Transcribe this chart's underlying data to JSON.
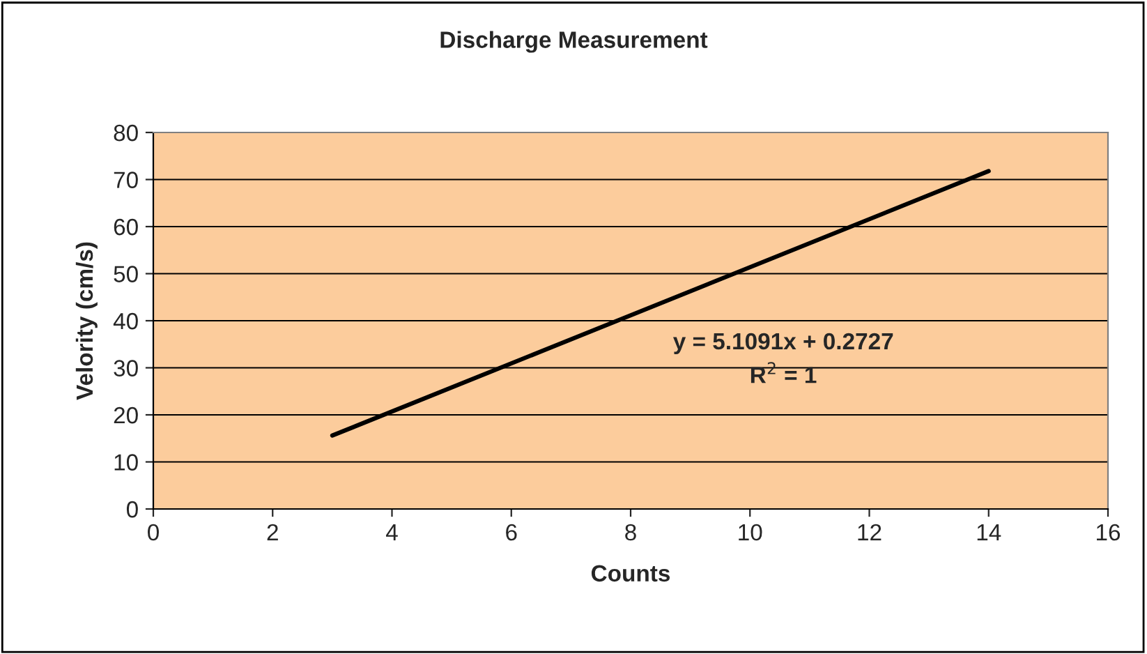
{
  "chart_data": {
    "type": "line",
    "title": "Discharge Measurement",
    "xlabel": "Counts",
    "ylabel": "Velority (cm/s)",
    "series": [
      {
        "color": "#000000",
        "x": [
          3,
          14
        ],
        "values": [
          15.6,
          71.8
        ]
      }
    ],
    "xlim": [
      0,
      16
    ],
    "xticks": [
      0,
      2,
      4,
      6,
      8,
      10,
      12,
      14,
      16
    ],
    "ylim": [
      0,
      80
    ],
    "yticks": [
      0,
      10,
      20,
      30,
      40,
      50,
      60,
      70,
      80
    ],
    "grid": "y",
    "marker": "none",
    "line_style": "solid",
    "legend": false,
    "annotations": [
      "y = 5.1091x + 0.2727",
      "R$^{2}$ = 1"
    ]
  }
}
